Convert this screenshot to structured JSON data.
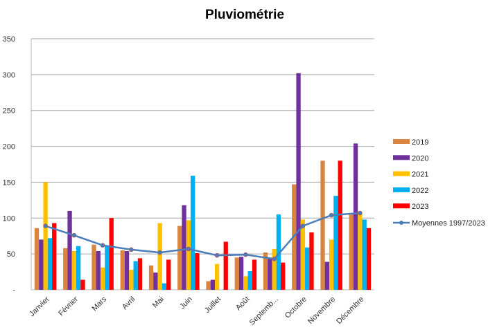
{
  "chart_data": {
    "type": "bar",
    "title": "Pluviométrie",
    "xlabel": "",
    "ylabel": "",
    "ylim": [
      0,
      350
    ],
    "yticks": [
      0,
      50,
      100,
      150,
      200,
      250,
      300,
      350
    ],
    "ytick_labels": [
      "-",
      "50",
      "100",
      "150",
      "200",
      "250",
      "300",
      "350"
    ],
    "grid": true,
    "legend_position": "right",
    "categories": [
      "Janvier",
      "Février",
      "Mars",
      "Avril",
      "Mai",
      "Juin",
      "Juillet",
      "Août",
      "Septemb...",
      "Octobre",
      "Novembre",
      "Décembre"
    ],
    "series": [
      {
        "name": "2019",
        "color": "#D9843F",
        "values": [
          86,
          58,
          63,
          55,
          34,
          89,
          12,
          45,
          52,
          147,
          180,
          105
        ]
      },
      {
        "name": "2020",
        "color": "#7030A0",
        "values": [
          70,
          110,
          54,
          54,
          24,
          118,
          14,
          46,
          44,
          302,
          39,
          204
        ]
      },
      {
        "name": "2021",
        "color": "#FFC000",
        "values": [
          150,
          54,
          31,
          28,
          93,
          97,
          36,
          19,
          57,
          98,
          70,
          108
        ]
      },
      {
        "name": "2022",
        "color": "#00B0F0",
        "values": [
          72,
          61,
          61,
          40,
          9,
          159,
          0,
          26,
          105,
          59,
          131,
          98
        ]
      },
      {
        "name": "2023",
        "color": "#FF0000",
        "values": [
          93,
          14,
          100,
          44,
          42,
          51,
          67,
          42,
          38,
          80,
          180,
          86
        ]
      }
    ],
    "line_series": {
      "name": "Moyennes 1997/2023",
      "color": "#4A7EBB",
      "values": [
        89,
        76,
        62,
        56,
        52,
        57,
        48,
        49,
        43,
        89,
        104,
        107
      ]
    }
  }
}
